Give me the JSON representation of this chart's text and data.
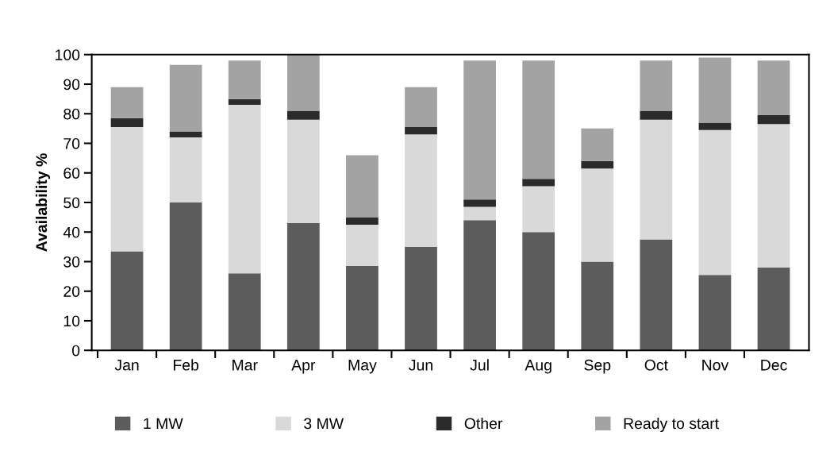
{
  "chart_data": {
    "type": "bar",
    "stacked": true,
    "ylabel": "Availability %",
    "categories": [
      "Jan",
      "Feb",
      "Mar",
      "Apr",
      "May",
      "Jun",
      "Jul",
      "Aug",
      "Sep",
      "Oct",
      "Nov",
      "Dec"
    ],
    "series": [
      {
        "name": "1 MW",
        "color": "#5c5c5c",
        "values": [
          33.5,
          50,
          26,
          43,
          28.5,
          35,
          44,
          40,
          30,
          37.5,
          25.5,
          28
        ]
      },
      {
        "name": "3 MW",
        "color": "#d9d9d9",
        "values": [
          42,
          22,
          57,
          35,
          14,
          38,
          4.5,
          15.5,
          31.5,
          40.5,
          49,
          48.5
        ]
      },
      {
        "name": "Other",
        "color": "#2b2b2b",
        "values": [
          3,
          2,
          2,
          3,
          2.5,
          2.5,
          2.5,
          2.5,
          2.5,
          3,
          2.5,
          3
        ]
      },
      {
        "name": "Ready to start",
        "color": "#a3a3a3",
        "values": [
          10.5,
          22.5,
          13,
          19,
          21,
          13.5,
          47,
          40,
          11,
          17,
          22,
          18.5
        ]
      }
    ],
    "ylim": [
      0,
      100
    ],
    "yticks": [
      0,
      10,
      20,
      30,
      40,
      50,
      60,
      70,
      80,
      90,
      100
    ],
    "grid": false,
    "legend": "bottom"
  }
}
